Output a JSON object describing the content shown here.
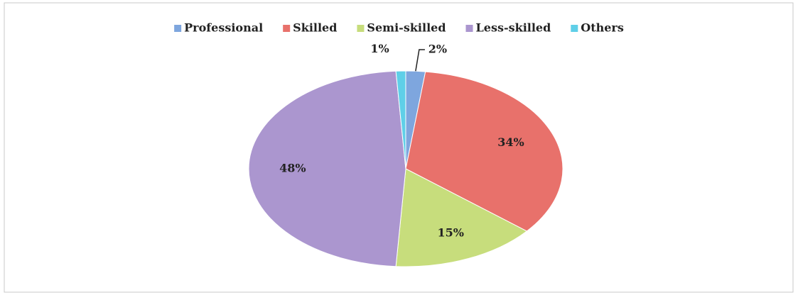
{
  "chart_data": {
    "type": "pie",
    "categories": [
      "Professional",
      "Skilled",
      "Semi-skilled",
      "Less-skilled",
      "Others"
    ],
    "values": [
      2,
      34,
      15,
      48,
      1
    ],
    "value_labels": [
      "2%",
      "34%",
      "15%",
      "48%",
      "1%"
    ],
    "colors": [
      "#7ea6de",
      "#e8716b",
      "#c7dd7c",
      "#ab96cf",
      "#5fcfe8"
    ],
    "legend": "top"
  }
}
